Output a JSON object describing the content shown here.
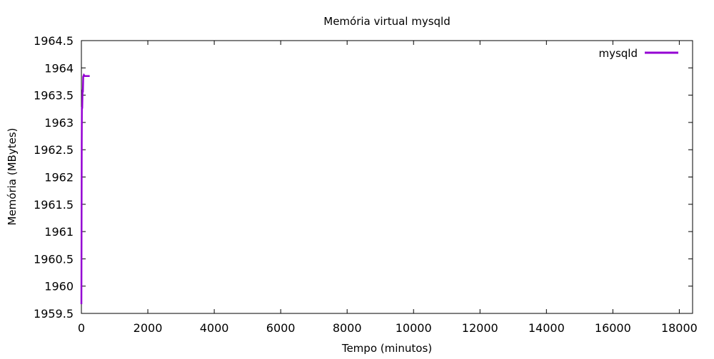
{
  "chart_data": {
    "type": "line",
    "title": "Memória virtual mysqld",
    "xlabel": "Tempo (minutos)",
    "ylabel": "Memória (MBytes)",
    "xlim": [
      0,
      18400
    ],
    "ylim": [
      1959.5,
      1964.5
    ],
    "xticks": [
      0,
      2000,
      4000,
      6000,
      8000,
      10000,
      12000,
      14000,
      16000,
      18000
    ],
    "yticks": [
      1959.5,
      1960,
      1960.5,
      1961,
      1961.5,
      1962,
      1962.5,
      1963,
      1963.5,
      1964,
      1964.5
    ],
    "legend_position": "top-right",
    "grid": false,
    "series": [
      {
        "name": "mysqld",
        "color": "#9400d3",
        "points": [
          [
            0,
            1959.67
          ],
          [
            5,
            1961.2
          ],
          [
            10,
            1962.6
          ],
          [
            15,
            1963.27
          ],
          [
            25,
            1963.27
          ],
          [
            35,
            1963.6
          ],
          [
            45,
            1963.55
          ],
          [
            55,
            1963.84
          ],
          [
            75,
            1963.87
          ],
          [
            100,
            1963.85
          ],
          [
            150,
            1963.85
          ],
          [
            200,
            1963.85
          ],
          [
            250,
            1963.85
          ]
        ]
      }
    ]
  }
}
